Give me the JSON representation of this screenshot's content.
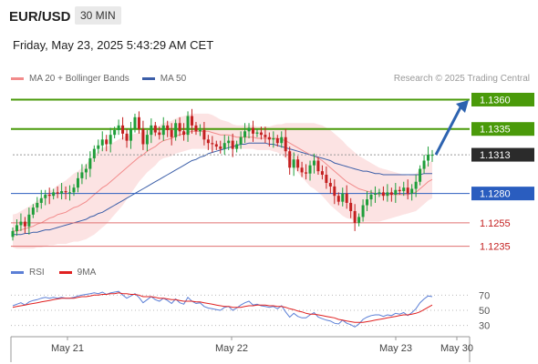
{
  "header": {
    "symbol": "EUR/USD",
    "interval": "30 MIN",
    "datetime": "Friday, May 23, 2025 5:43:29 AM CET"
  },
  "legend": {
    "ma20": "MA 20 + Bollinger Bands",
    "ma50": "MA 50",
    "copyright": "Research © 2025 Trading Central"
  },
  "rsi_legend": {
    "rsi": "RSI",
    "ma9": "9MA"
  },
  "colors": {
    "ma20": "#f28b8b",
    "ma50": "#3b5ea8",
    "band": "#fbd9d9",
    "bull": "#1f9e3a",
    "bear": "#c42020",
    "green_level": "#4a9a0a",
    "blue_level": "#2a5dbf",
    "red_level": "#e07070",
    "current": "#2b2b2b",
    "arrow": "#2d63b0",
    "rsi": "#5b7fd6",
    "rsi_ma": "#e02020"
  },
  "chart_data": {
    "type": "candlestick",
    "x_ticks": [
      "May 21",
      "May 22",
      "May 23",
      "May 30"
    ],
    "y_range": [
      1.122,
      1.1372
    ],
    "levels": [
      {
        "label": "1.1360",
        "value": 1.136,
        "kind": "resistance"
      },
      {
        "label": "1.1335",
        "value": 1.1335,
        "kind": "resistance"
      },
      {
        "label": "1.1313",
        "value": 1.1313,
        "kind": "current"
      },
      {
        "label": "1.1280",
        "value": 1.128,
        "kind": "pivot"
      },
      {
        "label": "1.1255",
        "value": 1.1255,
        "kind": "support"
      },
      {
        "label": "1.1235",
        "value": 1.1235,
        "kind": "support"
      }
    ],
    "close": [
      1.1248,
      1.1253,
      1.1256,
      1.1252,
      1.1262,
      1.1268,
      1.1272,
      1.1276,
      1.1279,
      1.1278,
      1.1281,
      1.128,
      1.1282,
      1.1281,
      1.1281,
      1.1285,
      1.1293,
      1.1298,
      1.1301,
      1.131,
      1.1318,
      1.1321,
      1.1326,
      1.1322,
      1.133,
      1.1334,
      1.1338,
      1.1331,
      1.1325,
      1.1335,
      1.1345,
      1.1335,
      1.1322,
      1.133,
      1.1338,
      1.1332,
      1.133,
      1.1338,
      1.1334,
      1.1328,
      1.134,
      1.1333,
      1.133,
      1.1346,
      1.1338,
      1.1333,
      1.1334,
      1.1326,
      1.1323,
      1.1322,
      1.132,
      1.1318,
      1.1323,
      1.1325,
      1.1318,
      1.1322,
      1.1328,
      1.1333,
      1.1336,
      1.1331,
      1.1332,
      1.133,
      1.1328,
      1.1326,
      1.1327,
      1.1323,
      1.1328,
      1.1316,
      1.1302,
      1.1309,
      1.1302,
      1.1298,
      1.1297,
      1.1304,
      1.1308,
      1.1299,
      1.1296,
      1.1289,
      1.1286,
      1.1278,
      1.1273,
      1.128,
      1.1272,
      1.1265,
      1.1255,
      1.126,
      1.127,
      1.1275,
      1.1279,
      1.128,
      1.1281,
      1.1278,
      1.1281,
      1.1279,
      1.1283,
      1.1282,
      1.1285,
      1.128,
      1.1284,
      1.129,
      1.1301,
      1.1308,
      1.1313,
      1.1313
    ],
    "ma20": [
      1.1248,
      1.1248,
      1.1249,
      1.125,
      1.1251,
      1.1252,
      1.1254,
      1.1255,
      1.1257,
      1.1259,
      1.126,
      1.1262,
      1.1263,
      1.1264,
      1.1266,
      1.1268,
      1.1269,
      1.1271,
      1.1273,
      1.1276,
      1.1279,
      1.1282,
      1.1285,
      1.1287,
      1.129,
      1.1293,
      1.1296,
      1.1299,
      1.1302,
      1.1305,
      1.1308,
      1.1311,
      1.1313,
      1.1316,
      1.1318,
      1.132,
      1.1323,
      1.1325,
      1.1326,
      1.1327,
      1.1329,
      1.133,
      1.1331,
      1.1332,
      1.1333,
      1.1333,
      1.1333,
      1.1333,
      1.1333,
      1.1332,
      1.1331,
      1.133,
      1.133,
      1.133,
      1.1329,
      1.1328,
      1.1328,
      1.1328,
      1.1328,
      1.1328,
      1.1327,
      1.1327,
      1.1327,
      1.1327,
      1.1327,
      1.1327,
      1.1326,
      1.1325,
      1.1323,
      1.1321,
      1.1319,
      1.1317,
      1.1315,
      1.1313,
      1.1312,
      1.131,
      1.1308,
      1.1305,
      1.1302,
      1.1299,
      1.1296,
      1.1293,
      1.129,
      1.1288,
      1.1286,
      1.1284,
      1.1283,
      1.1282,
      1.1281,
      1.128,
      1.1279,
      1.1279,
      1.1279,
      1.1279,
      1.1279,
      1.1279,
      1.1279,
      1.1279,
      1.128,
      1.1281,
      1.1284,
      1.1287,
      1.129,
      1.1292
    ],
    "ma50": [
      1.1245,
      1.1245,
      1.1245,
      1.1246,
      1.1246,
      1.1247,
      1.1247,
      1.1248,
      1.1249,
      1.1249,
      1.125,
      1.1251,
      1.1252,
      1.1253,
      1.1254,
      1.1255,
      1.1256,
      1.1257,
      1.1258,
      1.126,
      1.1261,
      1.1263,
      1.1264,
      1.1266,
      1.1268,
      1.127,
      1.1272,
      1.1274,
      1.1276,
      1.1278,
      1.128,
      1.1282,
      1.1284,
      1.1286,
      1.1288,
      1.129,
      1.1292,
      1.1294,
      1.1296,
      1.1298,
      1.13,
      1.1302,
      1.1304,
      1.1306,
      1.1308,
      1.1309,
      1.1311,
      1.1312,
      1.1314,
      1.1315,
      1.1316,
      1.1317,
      1.1318,
      1.1319,
      1.132,
      1.1321,
      1.1322,
      1.1322,
      1.1323,
      1.1323,
      1.1323,
      1.1323,
      1.1323,
      1.1322,
      1.1322,
      1.1321,
      1.132,
      1.1319,
      1.1318,
      1.1317,
      1.1316,
      1.1315,
      1.1314,
      1.1313,
      1.1312,
      1.1311,
      1.131,
      1.1309,
      1.1308,
      1.1306,
      1.1305,
      1.1304,
      1.1303,
      1.1302,
      1.1301,
      1.13,
      1.1299,
      1.1299,
      1.1298,
      1.1297,
      1.1297,
      1.1296,
      1.1296,
      1.1296,
      1.1296,
      1.1296,
      1.1296,
      1.1296,
      1.1296,
      1.1296,
      1.1296,
      1.1297,
      1.1297,
      1.1297
    ],
    "band_width": [
      0.0014,
      0.0015,
      0.0016,
      0.0017,
      0.0018,
      0.0019,
      0.002,
      0.0021,
      0.0022,
      0.0023,
      0.0024,
      0.0025,
      0.0026,
      0.0027,
      0.0028,
      0.0029,
      0.003,
      0.0031,
      0.0032,
      0.0033,
      0.0034,
      0.0034,
      0.0034,
      0.0033,
      0.0032,
      0.0031,
      0.003,
      0.0029,
      0.0027,
      0.0025,
      0.0023,
      0.0021,
      0.0019,
      0.0018,
      0.0017,
      0.0016,
      0.0015,
      0.0015,
      0.0015,
      0.0015,
      0.0015,
      0.0015,
      0.0015,
      0.0015,
      0.0015,
      0.0015,
      0.0015,
      0.0015,
      0.0015,
      0.0015,
      0.0014,
      0.0013,
      0.0012,
      0.0011,
      0.001,
      0.001,
      0.001,
      0.001,
      0.001,
      0.001,
      0.001,
      0.001,
      0.001,
      0.001,
      0.0011,
      0.0012,
      0.0013,
      0.0015,
      0.0017,
      0.0019,
      0.0021,
      0.0023,
      0.0025,
      0.0027,
      0.0028,
      0.0029,
      0.003,
      0.0031,
      0.0032,
      0.0032,
      0.0032,
      0.0032,
      0.0031,
      0.003,
      0.0029,
      0.0028,
      0.0027,
      0.0026,
      0.0025,
      0.0024,
      0.0023,
      0.0022,
      0.0021,
      0.002,
      0.0019,
      0.0018,
      0.0017,
      0.0016,
      0.0016,
      0.0016,
      0.0016,
      0.0016,
      0.0016,
      0.0016
    ],
    "rsi": {
      "ticks": [
        70,
        50,
        30
      ],
      "range": [
        20,
        80
      ],
      "values": [
        56,
        58,
        60,
        57,
        61,
        63,
        64,
        66,
        67,
        66,
        67,
        66,
        67,
        66,
        66,
        67,
        69,
        70,
        71,
        72,
        73,
        72,
        74,
        71,
        73,
        74,
        75,
        70,
        66,
        69,
        72,
        67,
        60,
        64,
        68,
        64,
        62,
        66,
        63,
        59,
        65,
        60,
        58,
        67,
        62,
        59,
        60,
        55,
        53,
        52,
        51,
        50,
        54,
        55,
        50,
        53,
        57,
        60,
        62,
        57,
        58,
        56,
        55,
        54,
        55,
        52,
        56,
        48,
        41,
        46,
        42,
        40,
        40,
        44,
        47,
        41,
        39,
        37,
        36,
        33,
        32,
        37,
        33,
        31,
        28,
        32,
        38,
        41,
        43,
        44,
        44,
        42,
        44,
        43,
        46,
        45,
        47,
        43,
        47,
        52,
        60,
        65,
        69,
        68
      ],
      "ma9": [
        54,
        55,
        56,
        57,
        58,
        59,
        60,
        61,
        62,
        63,
        64,
        65,
        66,
        66,
        66,
        66,
        67,
        68,
        68,
        69,
        70,
        70,
        71,
        71,
        72,
        72,
        73,
        72,
        72,
        71,
        71,
        70,
        68,
        68,
        68,
        67,
        66,
        66,
        65,
        64,
        64,
        63,
        62,
        62,
        62,
        61,
        61,
        60,
        59,
        58,
        57,
        56,
        55,
        55,
        54,
        54,
        54,
        55,
        56,
        56,
        57,
        57,
        57,
        56,
        56,
        55,
        55,
        54,
        52,
        51,
        49,
        48,
        46,
        45,
        45,
        44,
        43,
        42,
        41,
        40,
        38,
        37,
        36,
        35,
        34,
        34,
        34,
        35,
        36,
        37,
        38,
        39,
        40,
        41,
        42,
        43,
        44,
        44,
        45,
        46,
        48,
        51,
        54,
        57
      ]
    }
  }
}
